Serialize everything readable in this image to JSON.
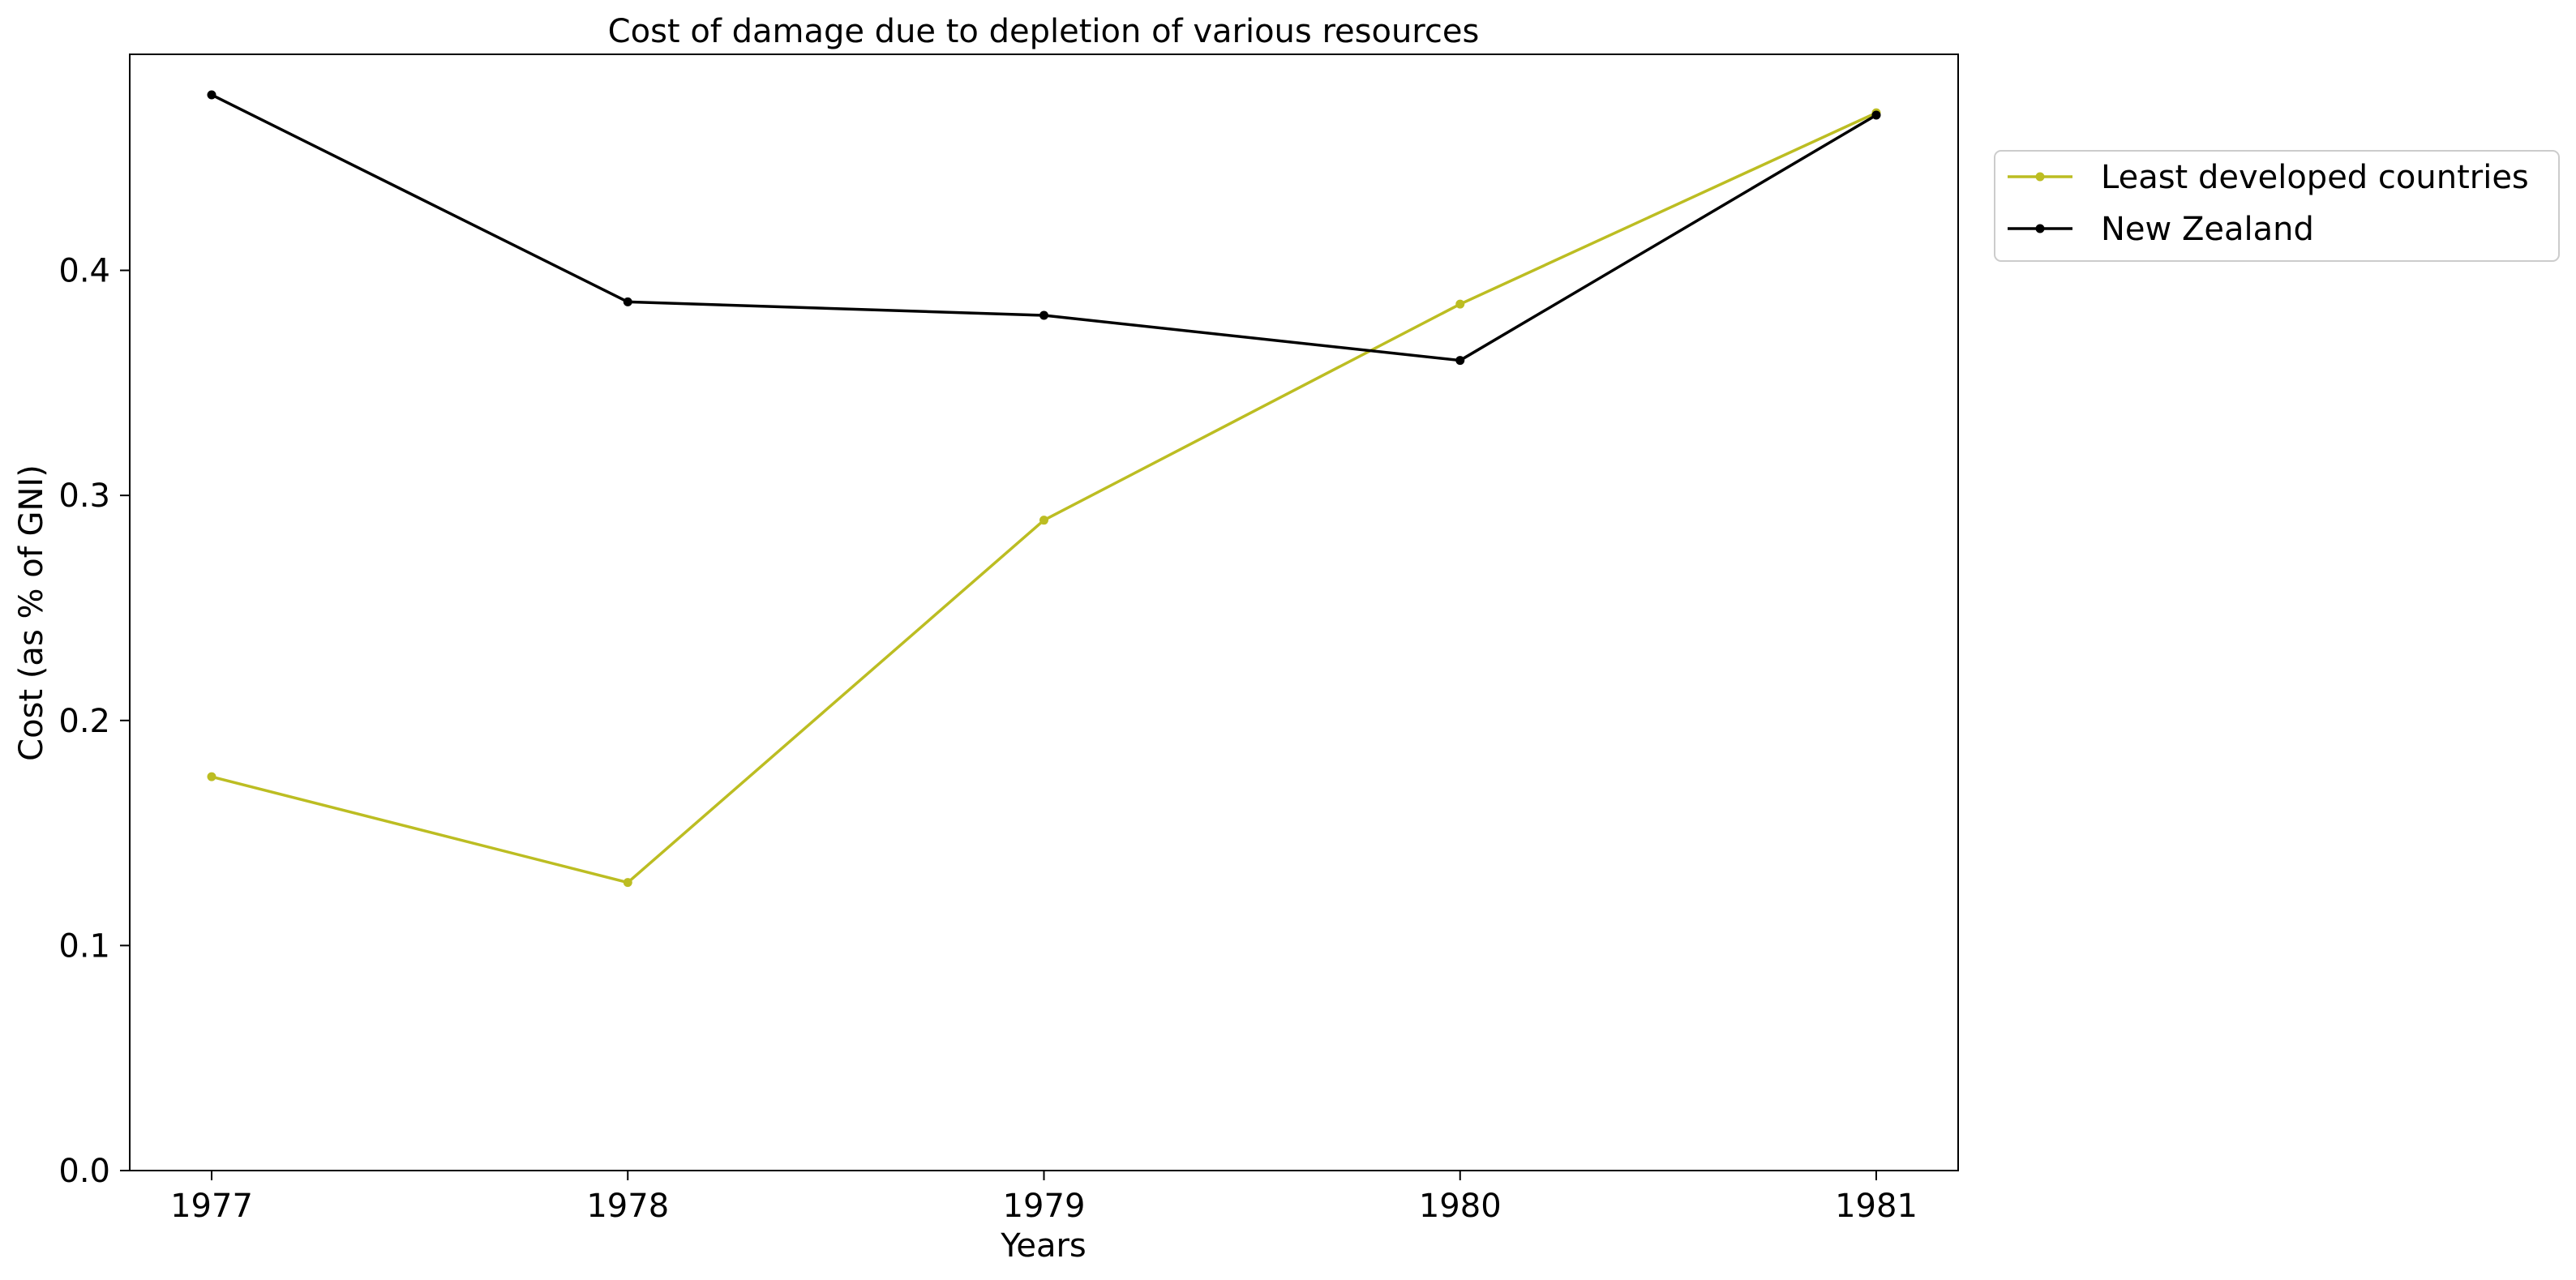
{
  "chart_data": {
    "type": "line",
    "title": "Cost of damage due to depletion of various resources",
    "xlabel": "Years",
    "ylabel": "Cost (as % of GNI)",
    "categories": [
      "1977",
      "1978",
      "1979",
      "1980",
      "1981"
    ],
    "x_ticks": [
      "1977",
      "1978",
      "1979",
      "1980",
      "1981"
    ],
    "y_ticks": [
      "0.0",
      "0.1",
      "0.2",
      "0.3",
      "0.4"
    ],
    "ylim": [
      0,
      0.496
    ],
    "grid": false,
    "legend_position": "outside-top-right",
    "series": [
      {
        "name": "Least developed countries",
        "color": "#bcbd22",
        "marker": "circle",
        "values": [
          0.175,
          0.128,
          0.289,
          0.385,
          0.47
        ]
      },
      {
        "name": "New Zealand",
        "color": "#000000",
        "marker": "circle",
        "values": [
          0.478,
          0.386,
          0.38,
          0.36,
          0.469
        ]
      }
    ]
  }
}
